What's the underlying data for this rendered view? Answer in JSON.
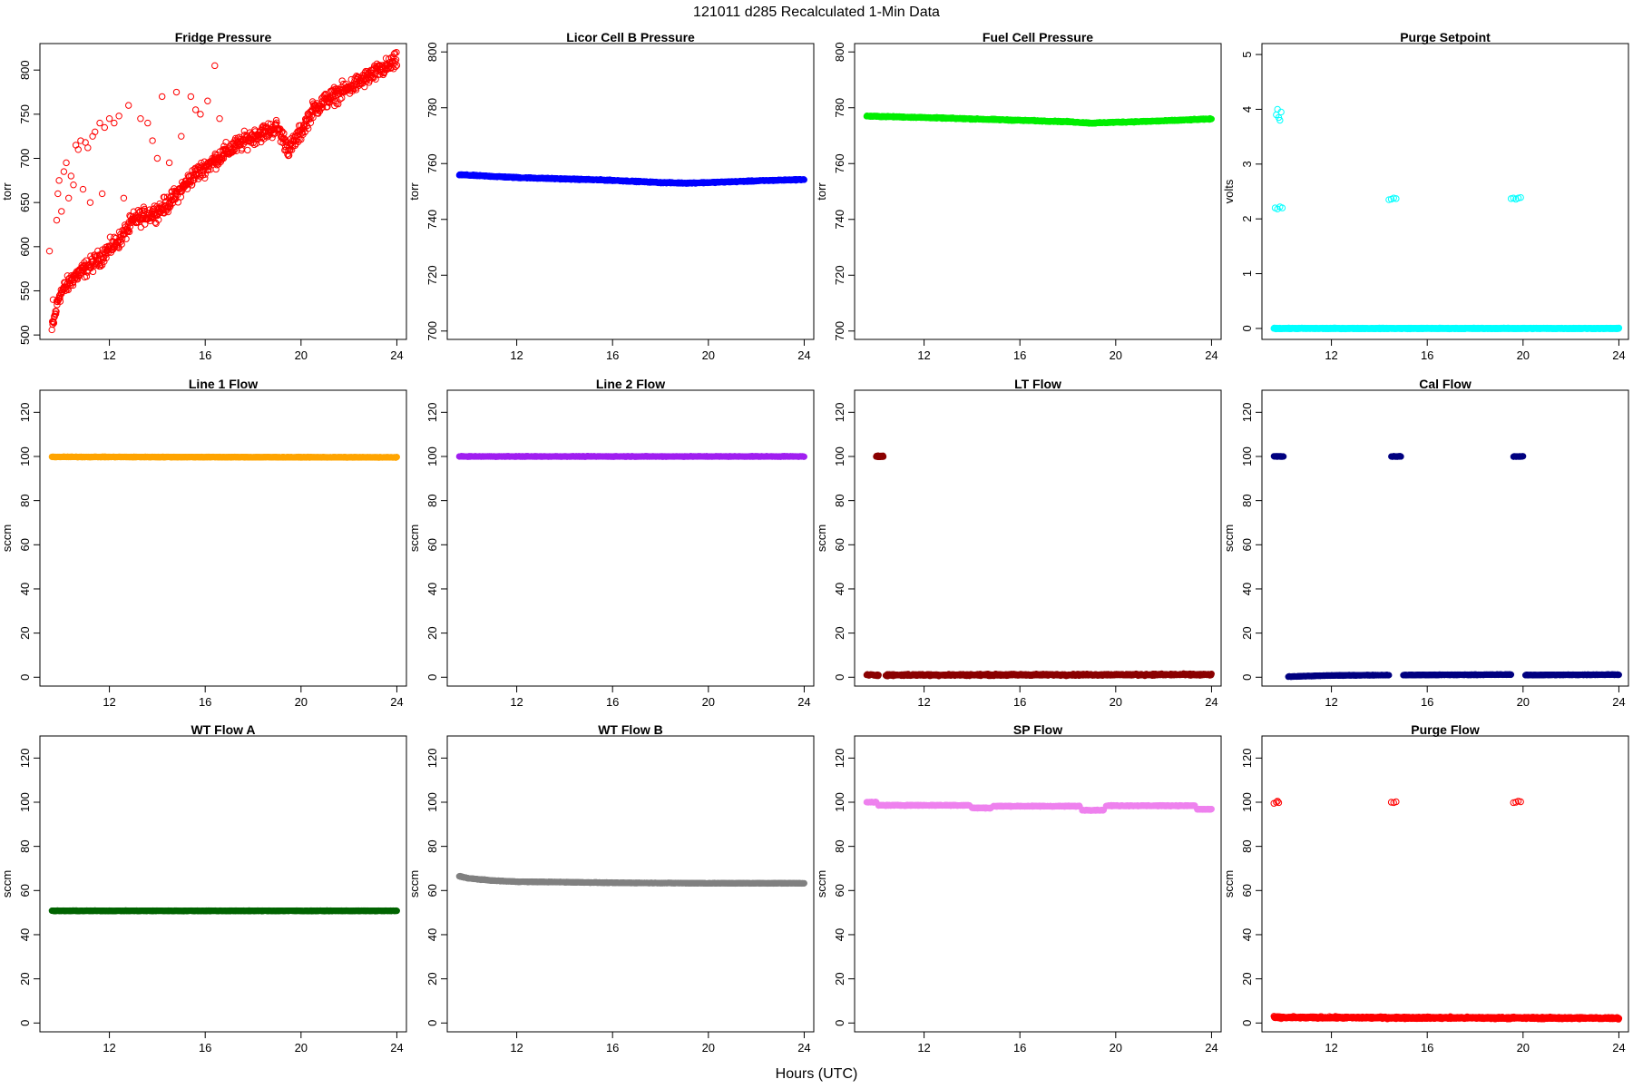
{
  "figure": {
    "title": "121011   d285   Recalculated 1-Min Data",
    "xlabel": "Hours (UTC)"
  },
  "chart_data": [
    {
      "type": "scatter",
      "title": "Fridge Pressure",
      "ylabel": "torr",
      "color": "#ff0000",
      "marker": "open-circle",
      "xlim": [
        9.1,
        24.4
      ],
      "ylim": [
        495,
        830
      ],
      "xticks": [
        12,
        16,
        20,
        24
      ],
      "yticks": [
        500,
        550,
        600,
        650,
        700,
        750,
        800
      ],
      "series": [
        {
          "kind": "segments",
          "scatter": 14,
          "segments": [
            [
              [
                9.6,
                505
              ],
              [
                9.9,
                545
              ],
              [
                10.5,
                565
              ],
              [
                11.5,
                585
              ],
              [
                12.5,
                610
              ],
              [
                13.0,
                630
              ],
              [
                14.0,
                640
              ],
              [
                14.5,
                650
              ],
              [
                15.0,
                665
              ],
              [
                15.5,
                680
              ],
              [
                16.0,
                690
              ],
              [
                17.0,
                710
              ],
              [
                18.0,
                725
              ],
              [
                19.0,
                735
              ],
              [
                19.5,
                710
              ],
              [
                20.0,
                730
              ],
              [
                20.5,
                755
              ],
              [
                21.0,
                765
              ],
              [
                22.0,
                780
              ],
              [
                23.0,
                795
              ],
              [
                24.0,
                810
              ]
            ]
          ],
          "extra_points": [
            [
              9.5,
              595
            ],
            [
              9.65,
              540
            ],
            [
              9.7,
              520
            ],
            [
              9.8,
              630
            ],
            [
              9.85,
              660
            ],
            [
              9.9,
              675
            ],
            [
              10.0,
              640
            ],
            [
              10.1,
              685
            ],
            [
              10.2,
              695
            ],
            [
              10.3,
              655
            ],
            [
              10.4,
              680
            ],
            [
              10.5,
              670
            ],
            [
              10.6,
              715
            ],
            [
              10.7,
              710
            ],
            [
              10.8,
              720
            ],
            [
              10.9,
              665
            ],
            [
              11.0,
              718
            ],
            [
              11.1,
              712
            ],
            [
              11.2,
              650
            ],
            [
              11.3,
              725
            ],
            [
              11.4,
              730
            ],
            [
              11.6,
              740
            ],
            [
              11.7,
              660
            ],
            [
              11.8,
              735
            ],
            [
              12.0,
              745
            ],
            [
              12.2,
              740
            ],
            [
              12.4,
              748
            ],
            [
              12.6,
              655
            ],
            [
              12.8,
              760
            ],
            [
              13.3,
              745
            ],
            [
              13.6,
              740
            ],
            [
              13.8,
              720
            ],
            [
              14.0,
              700
            ],
            [
              14.2,
              770
            ],
            [
              14.5,
              695
            ],
            [
              14.8,
              775
            ],
            [
              15.0,
              725
            ],
            [
              15.4,
              770
            ],
            [
              15.6,
              755
            ],
            [
              15.8,
              750
            ],
            [
              16.1,
              765
            ],
            [
              16.4,
              805
            ],
            [
              16.6,
              745
            ]
          ]
        }
      ]
    },
    {
      "type": "scatter",
      "title": "Licor Cell B Pressure",
      "ylabel": "torr",
      "color": "#0000ff",
      "marker": "filled-band",
      "xlim": [
        9.1,
        24.4
      ],
      "ylim": [
        697,
        803
      ],
      "xticks": [
        12,
        16,
        20,
        24
      ],
      "yticks": [
        700,
        720,
        740,
        760,
        780,
        800
      ],
      "series": [
        {
          "kind": "segments",
          "scatter": 0.3,
          "segments": [
            [
              [
                9.6,
                756
              ],
              [
                12.0,
                755
              ],
              [
                14.0,
                754.5
              ],
              [
                16.0,
                754
              ],
              [
                18.0,
                753.2
              ],
              [
                19.0,
                753
              ],
              [
                20.0,
                753.2
              ],
              [
                22.0,
                753.8
              ],
              [
                24.0,
                754.3
              ]
            ]
          ]
        }
      ]
    },
    {
      "type": "scatter",
      "title": "Fuel Cell Pressure",
      "ylabel": "torr",
      "color": "#00ee00",
      "marker": "filled-band",
      "xlim": [
        9.1,
        24.4
      ],
      "ylim": [
        697,
        803
      ],
      "xticks": [
        12,
        16,
        20,
        24
      ],
      "yticks": [
        700,
        720,
        740,
        760,
        780,
        800
      ],
      "series": [
        {
          "kind": "segments",
          "scatter": 0.3,
          "segments": [
            [
              [
                9.6,
                777
              ],
              [
                12.0,
                776.5
              ],
              [
                14.0,
                776
              ],
              [
                16.0,
                775.5
              ],
              [
                18.0,
                775
              ],
              [
                19.0,
                774.5
              ],
              [
                20.0,
                774.8
              ],
              [
                22.0,
                775.3
              ],
              [
                24.0,
                776
              ]
            ]
          ]
        }
      ]
    },
    {
      "type": "scatter",
      "title": "Purge Setpoint",
      "ylabel": "volts",
      "color": "#00ffff",
      "marker": "open-circle",
      "xlim": [
        9.1,
        24.4
      ],
      "ylim": [
        -0.2,
        5.2
      ],
      "xticks": [
        12,
        16,
        20,
        24
      ],
      "yticks": [
        0,
        1,
        2,
        3,
        4,
        5
      ],
      "series": [
        {
          "kind": "segments",
          "scatter": 0.01,
          "segments": [
            [
              [
                9.6,
                0
              ],
              [
                24.0,
                0
              ]
            ]
          ],
          "extra_points": [
            [
              9.7,
              3.9
            ],
            [
              9.75,
              4.0
            ],
            [
              9.8,
              3.85
            ],
            [
              9.85,
              3.8
            ],
            [
              9.9,
              3.95
            ],
            [
              9.65,
              2.2
            ],
            [
              9.75,
              2.18
            ],
            [
              9.85,
              2.22
            ],
            [
              9.95,
              2.2
            ],
            [
              14.4,
              2.35
            ],
            [
              14.5,
              2.36
            ],
            [
              14.6,
              2.38
            ],
            [
              14.7,
              2.37
            ],
            [
              19.5,
              2.37
            ],
            [
              19.6,
              2.38
            ],
            [
              19.7,
              2.36
            ],
            [
              19.8,
              2.38
            ],
            [
              19.9,
              2.39
            ]
          ]
        }
      ]
    },
    {
      "type": "scatter",
      "title": "Line 1 Flow",
      "ylabel": "sccm",
      "color": "#ffa500",
      "marker": "filled-band",
      "xlim": [
        9.1,
        24.4
      ],
      "ylim": [
        -4,
        130
      ],
      "xticks": [
        12,
        16,
        20,
        24
      ],
      "yticks": [
        0,
        20,
        40,
        60,
        80,
        100,
        120
      ],
      "series": [
        {
          "kind": "segments",
          "scatter": 0.2,
          "segments": [
            [
              [
                9.6,
                99.8
              ],
              [
                24.0,
                99.6
              ]
            ]
          ]
        }
      ]
    },
    {
      "type": "scatter",
      "title": "Line 2 Flow",
      "ylabel": "sccm",
      "color": "#a020f0",
      "marker": "filled-band",
      "xlim": [
        9.1,
        24.4
      ],
      "ylim": [
        -4,
        130
      ],
      "xticks": [
        12,
        16,
        20,
        24
      ],
      "yticks": [
        0,
        20,
        40,
        60,
        80,
        100,
        120
      ],
      "series": [
        {
          "kind": "segments",
          "scatter": 0.2,
          "segments": [
            [
              [
                9.6,
                100
              ],
              [
                24.0,
                100
              ]
            ]
          ]
        }
      ]
    },
    {
      "type": "scatter",
      "title": "LT Flow",
      "ylabel": "sccm",
      "color": "#8b0000",
      "marker": "filled-band",
      "xlim": [
        9.1,
        24.4
      ],
      "ylim": [
        -4,
        130
      ],
      "xticks": [
        12,
        16,
        20,
        24
      ],
      "yticks": [
        0,
        20,
        40,
        60,
        80,
        100,
        120
      ],
      "series": [
        {
          "kind": "segments",
          "scatter": 0.6,
          "segments": [
            [
              [
                9.6,
                1
              ],
              [
                10.1,
                1
              ]
            ],
            [
              [
                10.4,
                1
              ],
              [
                24.0,
                1.2
              ]
            ],
            [
              [
                10.0,
                100
              ],
              [
                10.3,
                100
              ]
            ]
          ]
        }
      ]
    },
    {
      "type": "scatter",
      "title": "Cal Flow",
      "ylabel": "sccm",
      "color": "#000080",
      "marker": "filled-band",
      "xlim": [
        9.1,
        24.4
      ],
      "ylim": [
        -4,
        130
      ],
      "xticks": [
        12,
        16,
        20,
        24
      ],
      "yticks": [
        0,
        20,
        40,
        60,
        80,
        100,
        120
      ],
      "series": [
        {
          "kind": "segments",
          "scatter": 0.2,
          "segments": [
            [
              [
                9.6,
                100
              ],
              [
                10.0,
                100
              ]
            ],
            [
              [
                10.2,
                0.3
              ],
              [
                12.0,
                0.8
              ],
              [
                14.4,
                1
              ]
            ],
            [
              [
                14.5,
                100
              ],
              [
                14.9,
                100
              ]
            ],
            [
              [
                15.0,
                1
              ],
              [
                19.5,
                1.2
              ]
            ],
            [
              [
                19.6,
                100
              ],
              [
                20.0,
                100
              ]
            ],
            [
              [
                20.1,
                1
              ],
              [
                24.0,
                1.2
              ]
            ]
          ]
        }
      ]
    },
    {
      "type": "scatter",
      "title": "WT Flow A",
      "ylabel": "sccm",
      "color": "#006400",
      "marker": "filled-band",
      "xlim": [
        9.1,
        24.4
      ],
      "ylim": [
        -4,
        130
      ],
      "xticks": [
        12,
        16,
        20,
        24
      ],
      "yticks": [
        0,
        20,
        40,
        60,
        80,
        100,
        120
      ],
      "series": [
        {
          "kind": "segments",
          "scatter": 0.2,
          "segments": [
            [
              [
                9.6,
                50.8
              ],
              [
                24.0,
                50.8
              ]
            ]
          ]
        }
      ]
    },
    {
      "type": "scatter",
      "title": "WT Flow B",
      "ylabel": "sccm",
      "color": "#808080",
      "marker": "filled-band",
      "xlim": [
        9.1,
        24.4
      ],
      "ylim": [
        -4,
        130
      ],
      "xticks": [
        12,
        16,
        20,
        24
      ],
      "yticks": [
        0,
        20,
        40,
        60,
        80,
        100,
        120
      ],
      "series": [
        {
          "kind": "segments",
          "scatter": 0.2,
          "segments": [
            [
              [
                9.6,
                66.5
              ],
              [
                10.0,
                65.5
              ],
              [
                11.0,
                64.5
              ],
              [
                12.0,
                64
              ],
              [
                14.0,
                63.8
              ],
              [
                16.0,
                63.5
              ],
              [
                20.0,
                63.3
              ],
              [
                24.0,
                63.3
              ]
            ]
          ]
        }
      ]
    },
    {
      "type": "scatter",
      "title": "SP Flow",
      "ylabel": "sccm",
      "color": "#ee82ee",
      "marker": "filled-band",
      "xlim": [
        9.1,
        24.4
      ],
      "ylim": [
        -4,
        130
      ],
      "xticks": [
        12,
        16,
        20,
        24
      ],
      "yticks": [
        0,
        20,
        40,
        60,
        80,
        100,
        120
      ],
      "series": [
        {
          "kind": "segments",
          "scatter": 0.3,
          "segments": [
            [
              [
                9.6,
                100
              ],
              [
                10.0,
                100
              ]
            ],
            [
              [
                10.1,
                98.6
              ],
              [
                13.9,
                98.6
              ]
            ],
            [
              [
                14.0,
                97.4
              ],
              [
                14.8,
                97.4
              ]
            ],
            [
              [
                14.9,
                98.2
              ],
              [
                18.5,
                98.2
              ]
            ],
            [
              [
                18.6,
                96.4
              ],
              [
                19.5,
                96.4
              ]
            ],
            [
              [
                19.6,
                98.4
              ],
              [
                23.3,
                98.4
              ]
            ],
            [
              [
                23.4,
                96.8
              ],
              [
                24.0,
                96.8
              ]
            ]
          ]
        }
      ]
    },
    {
      "type": "scatter",
      "title": "Purge Flow",
      "ylabel": "sccm",
      "color": "#ff0000",
      "marker": "open-circle",
      "xlim": [
        9.1,
        24.4
      ],
      "ylim": [
        -4,
        130
      ],
      "xticks": [
        12,
        16,
        20,
        24
      ],
      "yticks": [
        0,
        20,
        40,
        60,
        80,
        100,
        120
      ],
      "series": [
        {
          "kind": "segments",
          "scatter": 0.6,
          "segments": [
            [
              [
                9.6,
                2.5
              ],
              [
                24.0,
                2.2
              ]
            ]
          ],
          "extra_points": [
            [
              9.6,
              99.5
            ],
            [
              9.7,
              100
            ],
            [
              9.75,
              100.5
            ],
            [
              9.8,
              99.8
            ],
            [
              14.5,
              100
            ],
            [
              14.6,
              99.8
            ],
            [
              14.7,
              100.2
            ],
            [
              19.6,
              99.8
            ],
            [
              19.7,
              100
            ],
            [
              19.8,
              100.5
            ],
            [
              19.9,
              100.2
            ]
          ]
        }
      ]
    }
  ]
}
